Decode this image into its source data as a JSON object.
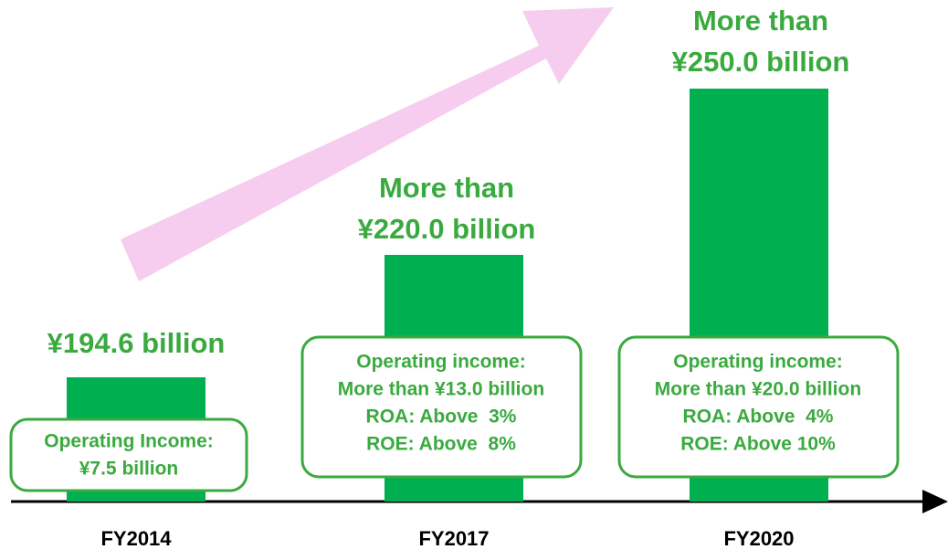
{
  "columns": [
    {
      "label": "FY2014",
      "headline": [
        "¥194.6 billion"
      ],
      "box": [
        "Operating Income:",
        "¥7.5 billion"
      ]
    },
    {
      "label": "FY2017",
      "headline": [
        "More than",
        "¥220.0 billion"
      ],
      "box": [
        "Operating income:",
        "More than ¥13.0 billion",
        "ROA: Above  3%",
        "ROE: Above  8%"
      ]
    },
    {
      "label": "FY2020",
      "headline": [
        "More than",
        "¥250.0 billion"
      ],
      "box": [
        "Operating income:",
        "More than ¥20.0 billion",
        "ROA: Above  4%",
        "ROE: Above 10%"
      ]
    }
  ]
}
